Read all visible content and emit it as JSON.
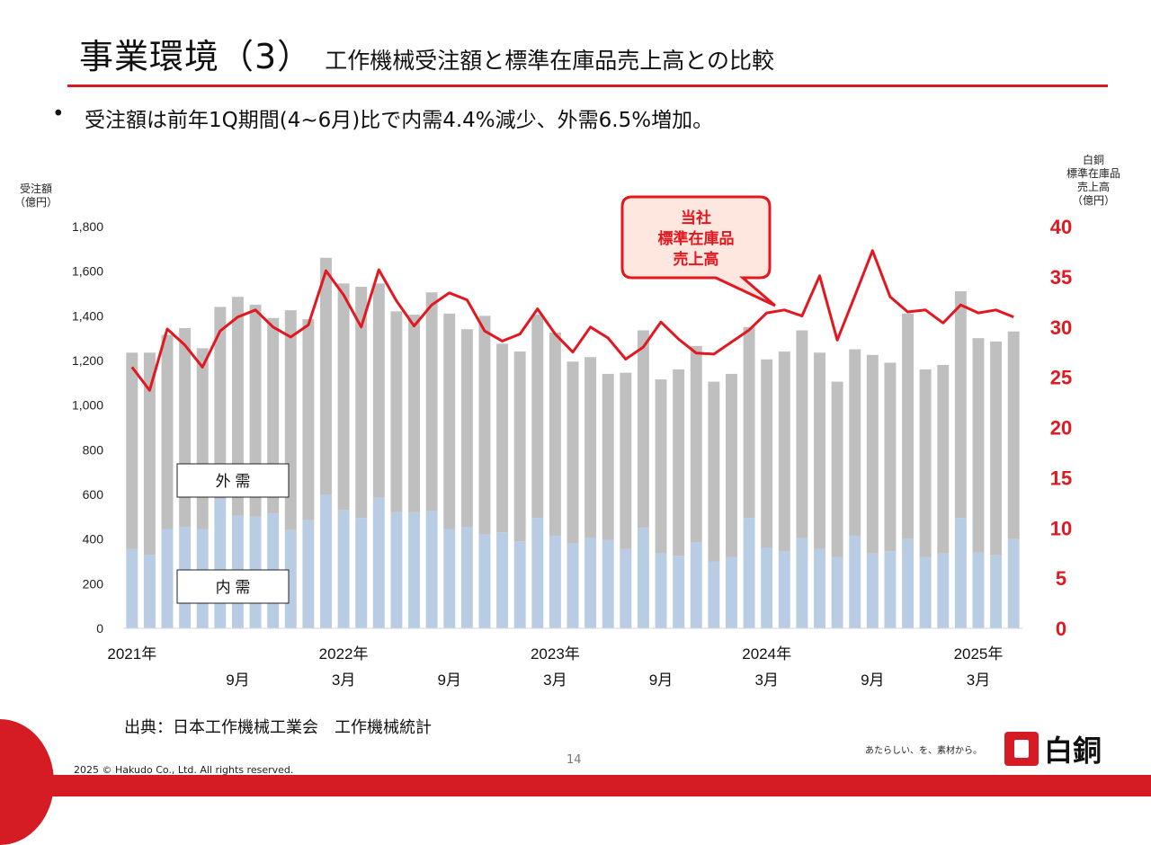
{
  "header": {
    "title": "事業環境（3）",
    "subtitle": "工作機械受注額と標準在庫品売上高との比較",
    "bullet": "受注額は前年1Q期間(4~6月)比で内需4.4%減少、外需6.5%増加。"
  },
  "footer": {
    "source": "出典：日本工作機械工業会　工作機械統計",
    "page_number": "14",
    "copyright": "2025 © Hakudo Co., Ltd. All rights reserved.",
    "tagline": "あたらしい、を、素材から。",
    "logo_text": "白銅"
  },
  "colors": {
    "brand_red": "#d51b23",
    "domestic": "#b8cde4",
    "foreign": "#bfbfbf",
    "line": "#e3171f"
  },
  "chart_data": {
    "type": "bar",
    "stacked": true,
    "left_axis_label": [
      "受注額",
      "（億円）"
    ],
    "right_axis_label": [
      "白銅",
      "標準在庫品",
      "売上高",
      "（億円）"
    ],
    "y_left_range": [
      0,
      1800
    ],
    "y_left_ticks": [
      "0",
      "200",
      "400",
      "600",
      "800",
      "1,000",
      "1,200",
      "1,400",
      "1,600",
      "1,800"
    ],
    "y_right_range": [
      0,
      40
    ],
    "y_right_ticks": [
      "0",
      "5",
      "10",
      "15",
      "20",
      "25",
      "30",
      "35",
      "40"
    ],
    "x_year_labels": [
      {
        "index": 0,
        "label": "2021年"
      },
      {
        "index": 12,
        "label": "2022年"
      },
      {
        "index": 24,
        "label": "2023年"
      },
      {
        "index": 36,
        "label": "2024年"
      },
      {
        "index": 48,
        "label": "2025年"
      }
    ],
    "x_month_labels": [
      {
        "index": 6,
        "label": "9月"
      },
      {
        "index": 12,
        "label": "3月"
      },
      {
        "index": 18,
        "label": "9月"
      },
      {
        "index": 24,
        "label": "3月"
      },
      {
        "index": 30,
        "label": "9月"
      },
      {
        "index": 36,
        "label": "3月"
      },
      {
        "index": 42,
        "label": "9月"
      },
      {
        "index": 48,
        "label": "3月"
      }
    ],
    "series": [
      {
        "name": "内需",
        "color": "#b8cde4",
        "values": [
          355,
          330,
          445,
          455,
          445,
          580,
          505,
          500,
          515,
          440,
          485,
          600,
          530,
          495,
          585,
          520,
          520,
          525,
          445,
          455,
          420,
          430,
          390,
          495,
          415,
          380,
          405,
          395,
          355,
          450,
          335,
          325,
          385,
          300,
          320,
          495,
          360,
          345,
          405,
          355,
          320,
          415,
          335,
          345,
          400,
          320,
          335,
          495,
          340,
          330,
          400
        ]
      },
      {
        "name": "外需",
        "color": "#bfbfbf",
        "values": [
          880,
          905,
          870,
          890,
          810,
          860,
          980,
          950,
          875,
          985,
          900,
          1060,
          1015,
          1035,
          960,
          900,
          885,
          980,
          965,
          885,
          980,
          845,
          850,
          910,
          910,
          815,
          810,
          745,
          790,
          885,
          780,
          835,
          880,
          805,
          820,
          855,
          845,
          895,
          930,
          880,
          785,
          835,
          890,
          845,
          1010,
          840,
          845,
          1015,
          960,
          955,
          930
        ]
      },
      {
        "name": "当社標準在庫品売上高",
        "axis": "right",
        "color": "#e3171f",
        "values": [
          26.0,
          23.7,
          29.8,
          28.2,
          26.0,
          29.6,
          31.0,
          31.7,
          30.0,
          29.0,
          30.2,
          35.6,
          33.2,
          30.0,
          35.7,
          32.6,
          30.1,
          32.2,
          33.4,
          32.7,
          29.6,
          28.6,
          29.3,
          31.8,
          29.3,
          27.5,
          30.0,
          28.9,
          26.8,
          28.0,
          30.5,
          28.8,
          27.4,
          27.3,
          28.5,
          29.7,
          31.4,
          31.7,
          31.1,
          35.1,
          28.7,
          33.1,
          37.6,
          33.0,
          31.5,
          31.7,
          30.4,
          32.2,
          31.4,
          31.7,
          31.0
        ]
      }
    ],
    "box_labels": {
      "foreign": "外  需",
      "domestic": "内  需"
    },
    "callout": [
      "当社",
      "標準在庫品",
      "売上高"
    ]
  }
}
